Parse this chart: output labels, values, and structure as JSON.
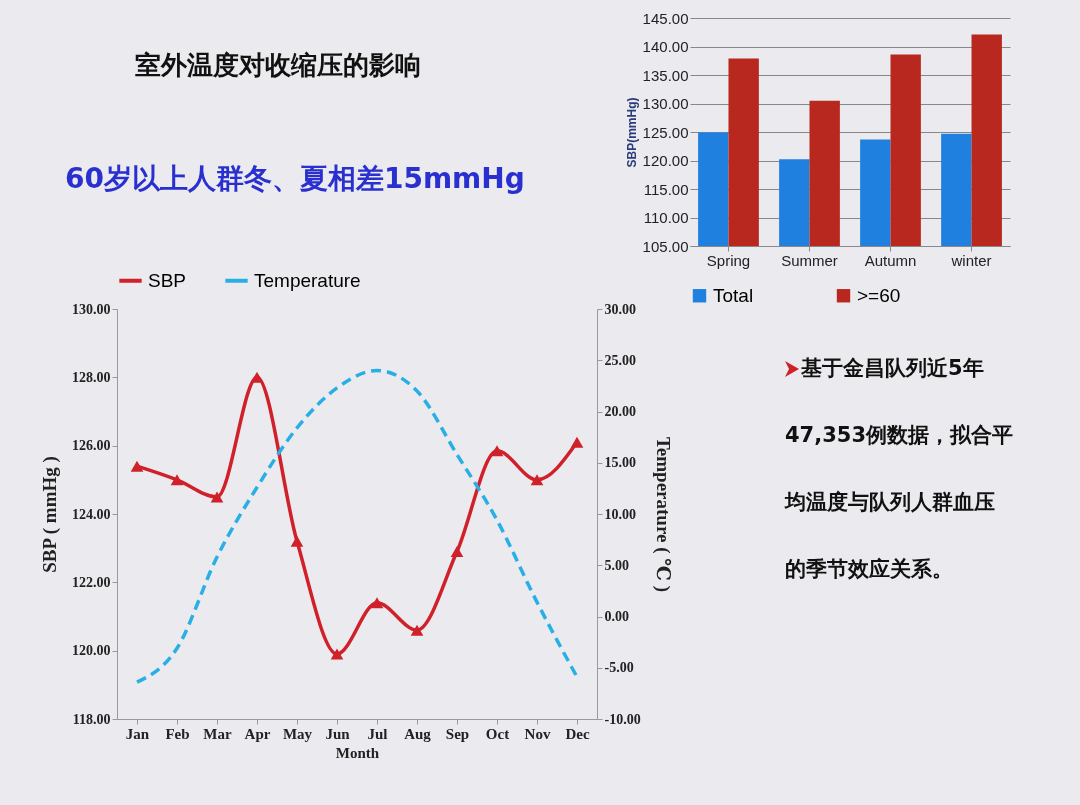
{
  "chart_data": [
    {
      "type": "line",
      "title": "室外温度对收缩压的影响",
      "subtitle": "60岁以上人群冬、夏相差15mmHg",
      "annotations": [
        "基于金昌队列近5年47,353例数据，拟合平均温度与队列人群血压的季节效应关系。"
      ],
      "categories": [
        "Jan",
        "Feb",
        "Mar",
        "Apr",
        "May",
        "Jun",
        "Jul",
        "Aug",
        "Sep",
        "Oct",
        "Nov",
        "Dec"
      ],
      "series": [
        {
          "name": "SBP",
          "color": "#d0202a",
          "marker": "triangle",
          "line_style": "solid",
          "values": [
            125.4,
            125.0,
            124.5,
            128.0,
            123.2,
            119.9,
            121.4,
            120.6,
            122.9,
            125.85,
            125.0,
            126.1
          ]
        },
        {
          "name": "Temperature",
          "color": "#29aee6",
          "marker": "none",
          "line_style": "dashed",
          "axis": "y2",
          "values": [
            -6.4,
            -3.1,
            5.8,
            12.6,
            18.4,
            22.3,
            24.0,
            22.0,
            15.8,
            9.4,
            1.4,
            -5.9
          ]
        }
      ],
      "xlabel": "Month",
      "ylabel": "SBP ( mmHg )",
      "y2label": "Temperature ( ℃ )",
      "ylim": [
        118,
        130
      ],
      "yticks": [
        {
          "value": 118,
          "label": "118.00"
        },
        {
          "value": 120,
          "label": "120.00"
        },
        {
          "value": 122,
          "label": "122.00"
        },
        {
          "value": 124,
          "label": "124.00"
        },
        {
          "value": 126,
          "label": "126.00"
        },
        {
          "value": 128,
          "label": "128.00"
        },
        {
          "value": 130,
          "label": "130.00"
        }
      ],
      "y2lim": [
        -10,
        30
      ],
      "y2ticks": [
        {
          "value": -10,
          "label": "-10.00"
        },
        {
          "value": -5,
          "label": "-5.00"
        },
        {
          "value": 0,
          "label": "0.00"
        },
        {
          "value": 5,
          "label": "5.00"
        },
        {
          "value": 10,
          "label": "10.00"
        },
        {
          "value": 15,
          "label": "15.00"
        },
        {
          "value": 20,
          "label": "20.00"
        },
        {
          "value": 25,
          "label": "25.00"
        },
        {
          "value": 30,
          "label": "30.00"
        }
      ],
      "legend": "top"
    },
    {
      "type": "bar",
      "categories": [
        "Spring",
        "Summer",
        "Autumn",
        "winter"
      ],
      "series": [
        {
          "name": "Total",
          "color": "#1f80e0",
          "values": [
            124.9,
            120.2,
            123.7,
            124.7
          ]
        },
        {
          "name": ">=60",
          "color": "#b8281e",
          "values": [
            137.9,
            130.5,
            138.6,
            142.1
          ]
        }
      ],
      "ylabel": "SBP(mmHg)",
      "ylim": [
        105,
        145
      ],
      "yticks": [
        {
          "value": 105,
          "label": "105.00"
        },
        {
          "value": 110,
          "label": "110.00"
        },
        {
          "value": 115,
          "label": "115.00"
        },
        {
          "value": 120,
          "label": "120.00"
        },
        {
          "value": 125,
          "label": "125.00"
        },
        {
          "value": 130,
          "label": "130.00"
        },
        {
          "value": 135,
          "label": "135.00"
        },
        {
          "value": 140,
          "label": "140.00"
        },
        {
          "value": 145,
          "label": "145.00"
        }
      ],
      "grid": "y",
      "legend": "bottom"
    }
  ]
}
